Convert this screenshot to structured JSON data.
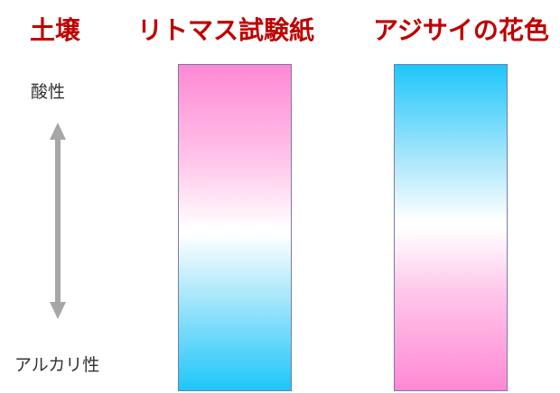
{
  "headers": {
    "soil": "土壌",
    "litmus": "リトマス試験紙",
    "hydrangea": "アジサイの花色"
  },
  "scale": {
    "top_label": "酸性",
    "bottom_label": "アルカリ性"
  },
  "colors": {
    "title": "#c00000",
    "acid_pink": "#ff88d4",
    "alkaline_blue": "#1ec6fa",
    "arrow": "#a6a6a6",
    "strip_border": "#7a7aa8"
  },
  "icons": {
    "scale_arrow": "double-headed-vertical-arrow"
  }
}
